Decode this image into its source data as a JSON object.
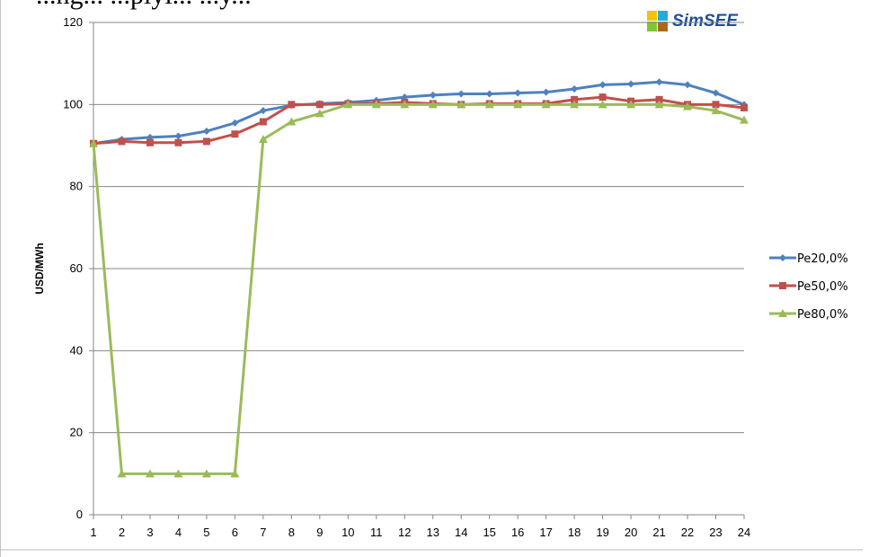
{
  "header": {
    "cut_text": "...ng...  ...plyi...  ...y..."
  },
  "logo": {
    "text": "SimSEE",
    "colors": [
      "#f2c400",
      "#1cb0d8",
      "#7cc832",
      "#b0661a"
    ]
  },
  "chart_data": {
    "type": "line",
    "title": "",
    "xlabel": "",
    "ylabel": "USD/MWh",
    "ylim": [
      0,
      120
    ],
    "yticks": [
      0,
      20,
      40,
      60,
      80,
      100,
      120
    ],
    "x": [
      1,
      2,
      3,
      4,
      5,
      6,
      7,
      8,
      9,
      10,
      11,
      12,
      13,
      14,
      15,
      16,
      17,
      18,
      19,
      20,
      21,
      22,
      23,
      24
    ],
    "grid": true,
    "legend_position": "right",
    "series": [
      {
        "name": "Pe20,0%",
        "color": "#4f81bd",
        "marker": "diamond",
        "values": [
          90.5,
          91.5,
          92,
          92.3,
          93.5,
          95.5,
          98.5,
          99.8,
          100.2,
          100.5,
          101,
          101.8,
          102.3,
          102.6,
          102.6,
          102.8,
          103,
          103.8,
          104.8,
          105,
          105.5,
          104.8,
          102.8,
          100
        ]
      },
      {
        "name": "Pe50,0%",
        "color": "#c0504d",
        "marker": "square",
        "values": [
          90.5,
          91,
          90.7,
          90.7,
          91,
          92.8,
          95.8,
          100,
          100,
          100.2,
          100.2,
          100.5,
          100.2,
          100,
          100.2,
          100.2,
          100.2,
          101.2,
          101.8,
          100.8,
          101.2,
          100,
          100,
          99.2
        ]
      },
      {
        "name": "Pe80,0%",
        "color": "#9bbb59",
        "marker": "triangle",
        "values": [
          90.5,
          10,
          10,
          10,
          10,
          10,
          91.5,
          95.8,
          97.8,
          100,
          100,
          100,
          100,
          100,
          100,
          100,
          100,
          100,
          100,
          100,
          100,
          99.5,
          98.5,
          96.2
        ]
      }
    ]
  }
}
